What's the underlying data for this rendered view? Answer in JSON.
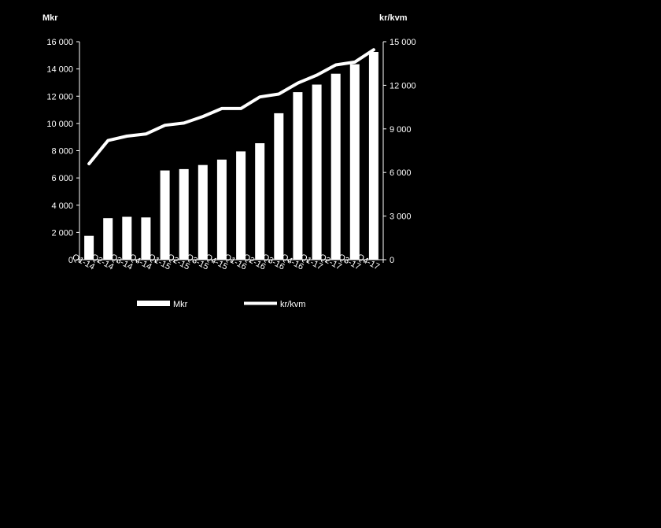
{
  "chart_data": {
    "type": "bar",
    "categories": [
      "Q1-14",
      "Q2-14",
      "Q3-14",
      "Q4-14",
      "Q1-15",
      "Q2-15",
      "Q3-15",
      "Q4-15",
      "Q1-16",
      "Q2-16",
      "Q3-16",
      "Q4-16",
      "Q1-17",
      "Q2-17",
      "Q3-17",
      "Q4-17"
    ],
    "left_axis": {
      "label": "Mkr",
      "ylim": [
        0,
        16000
      ],
      "ticks": [
        "0",
        "2 000",
        "4 000",
        "6 000",
        "8 000",
        "10 000",
        "12 000",
        "14 000",
        "16 000"
      ]
    },
    "right_axis": {
      "label": "kr/kvm",
      "ylim": [
        0,
        15000
      ],
      "ticks": [
        "0",
        "3 000",
        "6 000",
        "9 000",
        "12 000",
        "15 000"
      ]
    },
    "series": [
      {
        "name": "Mkr",
        "type": "bar",
        "axis": "left",
        "color": "#ffffff",
        "values": [
          1750,
          3050,
          3150,
          3100,
          6550,
          6650,
          6950,
          7350,
          7950,
          8550,
          10750,
          12300,
          12850,
          13650,
          14350,
          15250
        ]
      },
      {
        "name": "kr/kvm",
        "type": "line",
        "axis": "right",
        "color": "#ffffff",
        "values": [
          6600,
          8200,
          8500,
          8650,
          9250,
          9400,
          9850,
          10400,
          10400,
          11200,
          11400,
          12150,
          12700,
          13400,
          13600,
          14450
        ]
      }
    ],
    "legend": {
      "position": "bottom",
      "entries": [
        "Mkr",
        "kr/kvm"
      ]
    },
    "grid": false
  }
}
